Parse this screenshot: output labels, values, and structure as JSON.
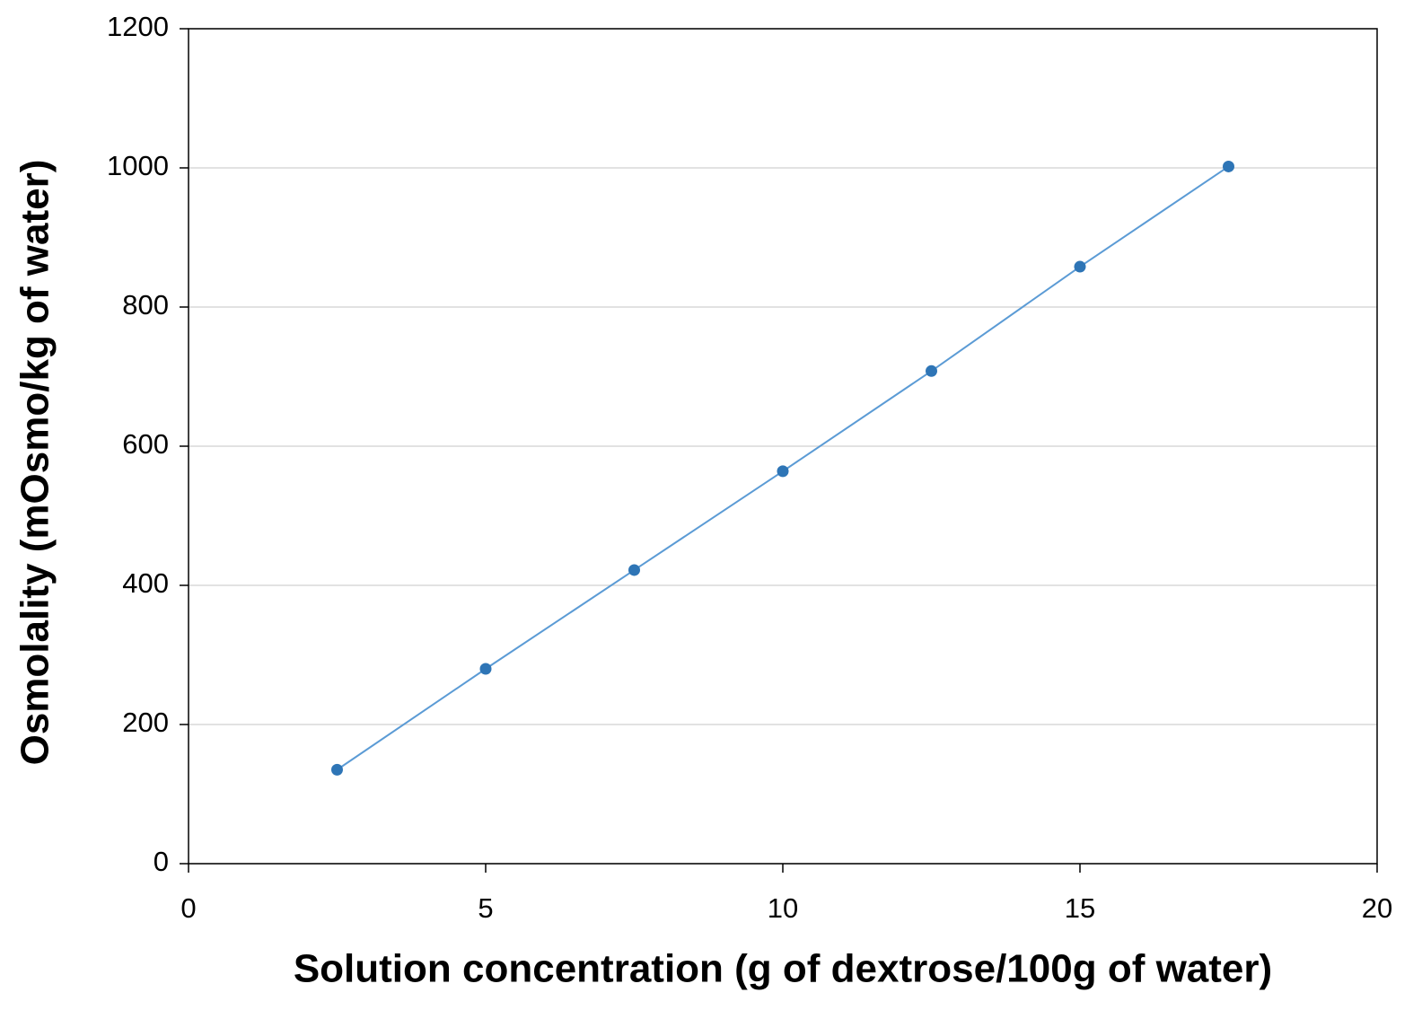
{
  "chart_data": {
    "type": "line",
    "x_label": "Solution concentration (g of dextrose/100g of water)",
    "y_label": "Osmolality (mOsmo/kg of water)",
    "x": [
      2.5,
      5,
      7.5,
      10,
      12.5,
      15,
      17.5
    ],
    "series": [
      {
        "color": "#2e75b6",
        "values": [
          135,
          280,
          422,
          564,
          708,
          858,
          1002
        ]
      }
    ],
    "xlim": [
      0,
      20
    ],
    "xticks": [
      0,
      5,
      10,
      15,
      20
    ],
    "ylim": [
      0,
      1200
    ],
    "yticks": [
      0,
      200,
      400,
      600,
      800,
      1000,
      1200
    ],
    "grid": true
  }
}
